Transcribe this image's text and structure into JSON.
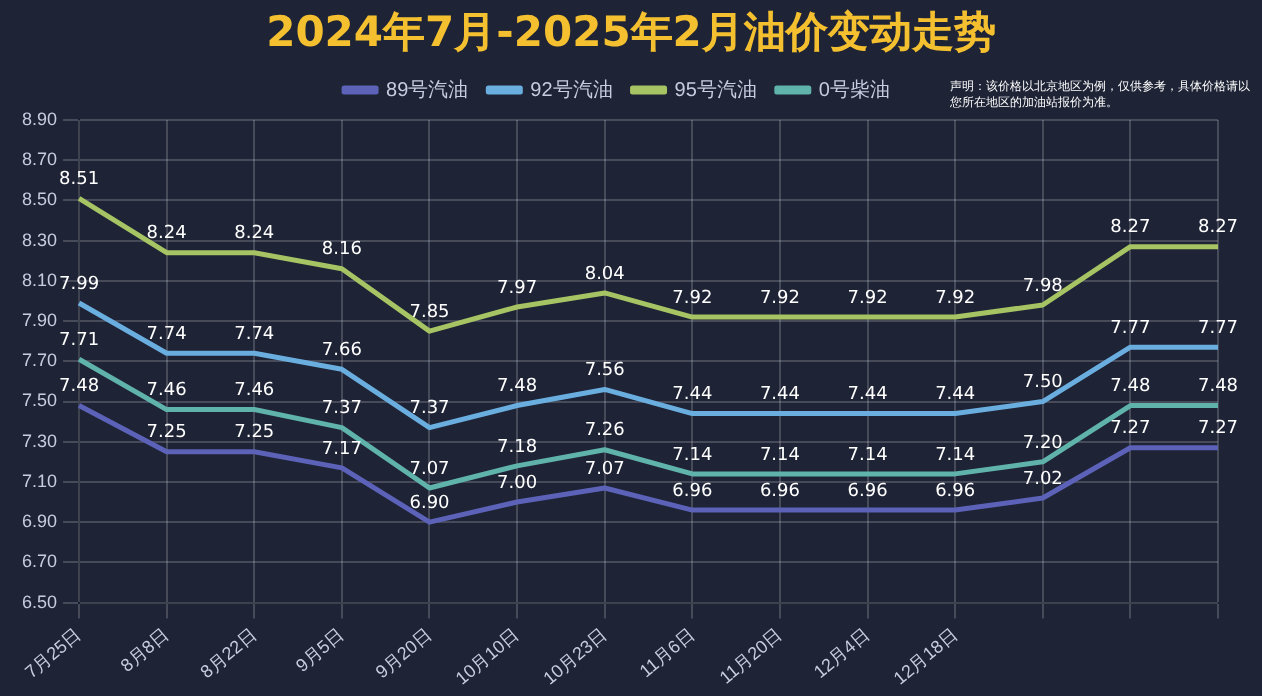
{
  "chart_data": {
    "type": "line",
    "title": "2024年7月-2025年2月油价变动走势",
    "categories": [
      "7月25日",
      "8月8日",
      "8月22日",
      "9月5日",
      "9月20日",
      "10月10日",
      "10月23日",
      "11月6日",
      "11月20日",
      "12月4日",
      "12月18日",
      null,
      null,
      null
    ],
    "series": [
      {
        "name": "89号汽油",
        "color": "#5c62b8",
        "values": [
          7.48,
          7.25,
          7.25,
          7.17,
          6.9,
          7.0,
          7.07,
          6.96,
          6.96,
          6.96,
          6.96,
          7.02,
          7.27,
          7.27
        ],
        "value_labels": [
          "7.48",
          "7.25",
          "7.25",
          "7.17",
          "6.90",
          "7.00",
          "7.07",
          "6.96",
          "6.96",
          "6.96",
          "6.96",
          "7.02",
          "7.27",
          "7.27"
        ]
      },
      {
        "name": "92号汽油",
        "color": "#6aaee0",
        "values": [
          7.99,
          7.74,
          7.74,
          7.66,
          7.37,
          7.48,
          7.56,
          7.44,
          7.44,
          7.44,
          7.44,
          7.5,
          7.77,
          7.77
        ],
        "value_labels": [
          "7.99",
          "7.74",
          "7.74",
          "7.66",
          "7.37",
          "7.48",
          "7.56",
          "7.44",
          "7.44",
          "7.44",
          "7.44",
          "7.50",
          "7.77",
          "7.77"
        ]
      },
      {
        "name": "95号汽油",
        "color": "#a6c464",
        "values": [
          8.51,
          8.24,
          8.24,
          8.16,
          7.85,
          7.97,
          8.04,
          7.92,
          7.92,
          7.92,
          7.92,
          7.98,
          8.27,
          8.27
        ],
        "value_labels": [
          "8.51",
          "8.24",
          "8.24",
          "8.16",
          "7.85",
          "7.97",
          "8.04",
          "7.92",
          "7.92",
          "7.92",
          "7.92",
          "7.98",
          "8.27",
          "8.27"
        ]
      },
      {
        "name": "0号柴油",
        "color": "#5fb3aa",
        "values": [
          7.71,
          7.46,
          7.46,
          7.37,
          7.07,
          7.18,
          7.26,
          7.14,
          7.14,
          7.14,
          7.14,
          7.2,
          7.48,
          7.48
        ],
        "value_labels": [
          "7.71",
          "7.46",
          "7.46",
          "7.37",
          "7.07",
          "7.18",
          "7.26",
          "7.14",
          "7.14",
          "7.14",
          "7.14",
          "7.20",
          "7.48",
          "7.48"
        ]
      }
    ],
    "ylim": [
      6.5,
      8.9
    ],
    "yticks": [
      {
        "value": 6.5,
        "label": "6.50"
      },
      {
        "value": 6.7,
        "label": "6.70"
      },
      {
        "value": 6.9,
        "label": "6.90"
      },
      {
        "value": 7.1,
        "label": "7.10"
      },
      {
        "value": 7.3,
        "label": "7.30"
      },
      {
        "value": 7.5,
        "label": "7.50"
      },
      {
        "value": 7.7,
        "label": "7.70"
      },
      {
        "value": 7.9,
        "label": "7.90"
      },
      {
        "value": 8.1,
        "label": "8.10"
      },
      {
        "value": 8.3,
        "label": "8.30"
      },
      {
        "value": 8.5,
        "label": "8.50"
      },
      {
        "value": 8.7,
        "label": "8.70"
      },
      {
        "value": 8.9,
        "label": "8.90"
      }
    ],
    "annotations": [
      "声明：该价格以北京地区为例，仅供参考，具体价格请以您所在地区的加油站报价为准。"
    ],
    "grid": true,
    "legend": "top",
    "marker": "none",
    "line_style": "solid"
  }
}
